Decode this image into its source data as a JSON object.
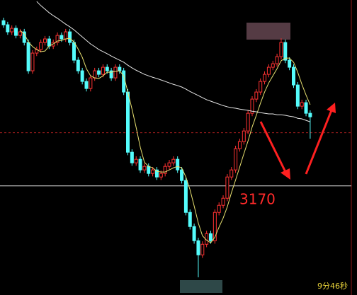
{
  "chart_data": {
    "type": "candlestick",
    "ylim": [
      3133,
      3233
    ],
    "up_color": "#ff3232",
    "down_color": "#54fcfc",
    "open": [
      3226.0,
      3224.6,
      3222.2,
      3223.4,
      3221.0,
      3222.2,
      3218.6,
      3209.0,
      3215.0,
      3216.2,
      3218.6,
      3219.8,
      3217.4,
      3218.6,
      3221.0,
      3219.8,
      3222.2,
      3218.6,
      3212.6,
      3209.0,
      3205.4,
      3203.0,
      3206.6,
      3209.0,
      3207.8,
      3210.2,
      3209.0,
      3206.6,
      3210.2,
      3209.0,
      3201.8,
      3181.4,
      3177.8,
      3179.0,
      3175.4,
      3176.6,
      3174.2,
      3175.4,
      3173.0,
      3174.2,
      3176.6,
      3177.8,
      3179.0,
      3175.4,
      3171.8,
      3161.0,
      3156.2,
      3151.4,
      3146.6,
      3150.2,
      3153.8,
      3151.4,
      3161.0,
      3163.4,
      3165.8,
      3173.0,
      3175.4,
      3182.6,
      3185.0,
      3188.6,
      3194.6,
      3199.4,
      3201.8,
      3205.4,
      3207.8,
      3210.2,
      3211.4,
      3213.8,
      3218.6,
      3212.6,
      3210.2,
      3204.2,
      3197.0,
      3198.2,
      3194.6
    ],
    "high": [
      3227.0,
      3225.6,
      3224.4,
      3224.4,
      3223.2,
      3223.2,
      3219.6,
      3216.0,
      3217.2,
      3219.6,
      3220.8,
      3220.8,
      3219.6,
      3222.0,
      3222.0,
      3223.2,
      3223.2,
      3219.6,
      3213.6,
      3210.0,
      3206.4,
      3207.6,
      3210.0,
      3210.0,
      3211.2,
      3211.2,
      3210.0,
      3211.2,
      3211.2,
      3210.0,
      3202.8,
      3182.4,
      3180.0,
      3180.0,
      3177.6,
      3177.6,
      3176.4,
      3176.4,
      3175.2,
      3177.6,
      3178.8,
      3180.0,
      3180.0,
      3176.4,
      3172.8,
      3162.0,
      3157.2,
      3152.4,
      3151.2,
      3154.8,
      3154.8,
      3162.0,
      3164.4,
      3166.8,
      3174.0,
      3176.4,
      3183.6,
      3186.0,
      3189.6,
      3195.6,
      3200.4,
      3202.8,
      3206.4,
      3208.8,
      3211.2,
      3212.4,
      3214.8,
      3220.0,
      3219.6,
      3213.6,
      3211.2,
      3205.2,
      3199.2,
      3199.2,
      3195.6
    ],
    "low": [
      3223.6,
      3221.2,
      3221.2,
      3220.0,
      3220.0,
      3217.6,
      3208.0,
      3208.0,
      3214.0,
      3215.2,
      3217.6,
      3216.4,
      3216.4,
      3217.6,
      3218.8,
      3218.8,
      3217.6,
      3211.6,
      3208.0,
      3204.4,
      3202.0,
      3202.0,
      3205.6,
      3206.8,
      3206.8,
      3208.0,
      3205.6,
      3205.6,
      3208.0,
      3200.8,
      3180.4,
      3176.8,
      3176.8,
      3174.4,
      3174.4,
      3173.2,
      3173.2,
      3172.0,
      3172.0,
      3173.2,
      3175.6,
      3176.8,
      3174.4,
      3170.8,
      3160.0,
      3155.2,
      3150.4,
      3139.0,
      3145.6,
      3149.2,
      3150.4,
      3150.4,
      3160.0,
      3162.4,
      3164.8,
      3172.0,
      3174.4,
      3181.6,
      3184.0,
      3187.6,
      3193.6,
      3198.4,
      3200.8,
      3204.4,
      3206.8,
      3209.2,
      3210.4,
      3212.8,
      3211.6,
      3209.2,
      3203.2,
      3196.0,
      3196.0,
      3193.6,
      3186.0
    ],
    "close": [
      3224.6,
      3222.2,
      3223.4,
      3221.0,
      3222.2,
      3218.6,
      3209.0,
      3215.0,
      3216.2,
      3218.6,
      3219.8,
      3217.4,
      3218.6,
      3221.0,
      3219.8,
      3222.2,
      3218.6,
      3212.6,
      3209.0,
      3205.4,
      3203.0,
      3206.6,
      3209.0,
      3207.8,
      3210.2,
      3209.0,
      3206.6,
      3210.2,
      3209.0,
      3201.8,
      3181.4,
      3177.8,
      3179.0,
      3175.4,
      3176.6,
      3174.2,
      3175.4,
      3173.0,
      3174.2,
      3176.6,
      3177.8,
      3179.0,
      3175.4,
      3171.8,
      3161.0,
      3156.2,
      3151.4,
      3146.6,
      3150.2,
      3153.8,
      3151.4,
      3161.0,
      3163.4,
      3165.8,
      3173.0,
      3175.4,
      3182.6,
      3185.0,
      3188.6,
      3194.6,
      3199.4,
      3201.8,
      3205.4,
      3207.8,
      3210.2,
      3211.4,
      3213.8,
      3218.6,
      3212.6,
      3210.2,
      3204.2,
      3197.0,
      3198.2,
      3194.6,
      3193.4
    ],
    "lines": [
      {
        "color": "#e8e070",
        "values": [
          null,
          null,
          null,
          null,
          3222.7,
          3221.5,
          3218.8,
          3217.2,
          3216.2,
          3215.5,
          3215.7,
          3217.4,
          3218.1,
          3219.1,
          3219.3,
          3219.8,
          3220.0,
          3218.8,
          3216.4,
          3213.6,
          3209.7,
          3207.3,
          3206.6,
          3206.4,
          3207.3,
          3208.5,
          3208.5,
          3208.8,
          3209.0,
          3207.3,
          3201.8,
          3196.0,
          3189.8,
          3183.1,
          3178.0,
          3176.6,
          3176.1,
          3174.9,
          3174.7,
          3174.7,
          3175.4,
          3176.1,
          3176.6,
          3176.1,
          3173.0,
          3168.7,
          3163.2,
          3157.4,
          3153.1,
          3151.6,
          3150.7,
          3152.6,
          3156.0,
          3159.1,
          3162.9,
          3167.7,
          3172.0,
          3176.4,
          3180.9,
          3185.2,
          3190.0,
          3193.9,
          3198.0,
          3201.8,
          3204.9,
          3207.3,
          3209.7,
          3212.4,
          3213.3,
          3213.3,
          3211.9,
          3208.5,
          3204.4,
          3200.8,
          3197.5
        ]
      },
      {
        "color": "#e6e6e6",
        "values": [
          null,
          null,
          null,
          null,
          null,
          null,
          null,
          null,
          3232.5,
          3231.1,
          3229.9,
          3228.7,
          3227.7,
          3226.8,
          3225.8,
          3224.8,
          3223.9,
          3222.9,
          3221.7,
          3220.5,
          3219.3,
          3218.1,
          3217.2,
          3216.2,
          3215.5,
          3214.8,
          3214.0,
          3213.3,
          3212.6,
          3211.9,
          3210.9,
          3210.0,
          3209.2,
          3208.5,
          3207.8,
          3207.3,
          3206.8,
          3206.4,
          3205.9,
          3205.4,
          3204.9,
          3204.4,
          3204.0,
          3203.5,
          3202.8,
          3202.0,
          3201.3,
          3200.6,
          3199.9,
          3199.2,
          3198.7,
          3198.2,
          3197.7,
          3197.2,
          3196.8,
          3196.5,
          3196.3,
          3196.0,
          3195.8,
          3195.6,
          3195.3,
          3195.1,
          3194.8,
          3194.6,
          3194.4,
          3194.4,
          3194.1,
          3194.1,
          3193.9,
          3193.6,
          3193.4,
          3192.9,
          3192.7,
          3192.2,
          3191.7
        ]
      }
    ],
    "support_line": 3170,
    "reference_line": 3188,
    "timer": "9分46秒"
  }
}
